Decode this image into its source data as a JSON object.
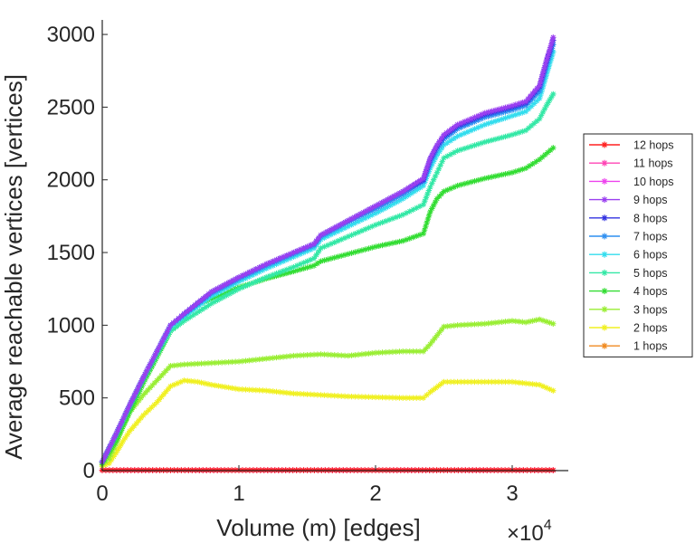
{
  "chart_data": {
    "type": "line",
    "title": "",
    "xlabel": "Volume (m) [edges]",
    "ylabel": "Average reachable vertices [vertices]",
    "x_multiplier_label": "×10",
    "x_multiplier_exponent": "4",
    "xlim": [
      0,
      34000
    ],
    "ylim": [
      0,
      3100
    ],
    "xticks": [
      {
        "value": 0,
        "label": "0"
      },
      {
        "value": 10000,
        "label": "1"
      },
      {
        "value": 20000,
        "label": "2"
      },
      {
        "value": 30000,
        "label": "3"
      }
    ],
    "yticks": [
      {
        "value": 0,
        "label": "0"
      },
      {
        "value": 500,
        "label": "500"
      },
      {
        "value": 1000,
        "label": "1000"
      },
      {
        "value": 1500,
        "label": "1500"
      },
      {
        "value": 2000,
        "label": "2000"
      },
      {
        "value": 2500,
        "label": "2500"
      },
      {
        "value": 3000,
        "label": "3000"
      }
    ],
    "grid": false,
    "legend_position": "right",
    "marker": "asterisk",
    "series": [
      {
        "name": "12 hops",
        "color": "#ff2020",
        "x": [
          0,
          5000,
          10000,
          15000,
          20000,
          25000,
          30000,
          33000
        ],
        "values": [
          3,
          3,
          3,
          3,
          3,
          3,
          3,
          3
        ]
      },
      {
        "name": "11 hops",
        "color": "#ff44b4",
        "x": [
          0,
          5000,
          10000,
          15000,
          20000,
          25000,
          30000,
          33000
        ],
        "values": [
          3,
          3,
          3,
          3,
          3,
          3,
          3,
          3
        ]
      },
      {
        "name": "10 hops",
        "color": "#ee44ee",
        "x": [
          0,
          5000,
          10000,
          15000,
          20000,
          25000,
          30000,
          33000
        ],
        "values": [
          3,
          3,
          3,
          3,
          3,
          3,
          3,
          3
        ]
      },
      {
        "name": "9 hops",
        "color": "#9a3ff0",
        "x": [
          0,
          1000,
          2000,
          3000,
          4000,
          5000,
          6000,
          8000,
          10000,
          12000,
          14000,
          15500,
          16000,
          18000,
          20000,
          22000,
          23500,
          24000,
          24500,
          25000,
          26000,
          28000,
          30000,
          31000,
          32000,
          32500,
          33000
        ],
        "values": [
          60,
          250,
          450,
          640,
          820,
          1000,
          1080,
          1230,
          1330,
          1420,
          1500,
          1560,
          1620,
          1720,
          1820,
          1920,
          2010,
          2150,
          2240,
          2310,
          2380,
          2460,
          2510,
          2540,
          2650,
          2820,
          2980
        ]
      },
      {
        "name": "8 hops",
        "color": "#3232e0",
        "x": [
          0,
          1000,
          2000,
          3000,
          4000,
          5000,
          6000,
          8000,
          10000,
          12000,
          14000,
          15500,
          16000,
          18000,
          20000,
          22000,
          23500,
          24000,
          24500,
          25000,
          26000,
          28000,
          30000,
          31000,
          32000,
          32500,
          33000
        ],
        "values": [
          60,
          250,
          450,
          640,
          820,
          1000,
          1080,
          1230,
          1330,
          1420,
          1500,
          1560,
          1620,
          1720,
          1820,
          1920,
          2000,
          2140,
          2230,
          2300,
          2370,
          2450,
          2500,
          2530,
          2640,
          2810,
          2960
        ]
      },
      {
        "name": "7 hops",
        "color": "#2f8ff0",
        "x": [
          0,
          1000,
          2000,
          3000,
          4000,
          5000,
          6000,
          8000,
          10000,
          12000,
          14000,
          15500,
          16000,
          18000,
          20000,
          22000,
          23500,
          24000,
          24500,
          25000,
          26000,
          28000,
          30000,
          31000,
          32000,
          32500,
          33000
        ],
        "values": [
          60,
          250,
          450,
          640,
          820,
          1000,
          1075,
          1220,
          1320,
          1410,
          1490,
          1550,
          1610,
          1710,
          1800,
          1900,
          1990,
          2120,
          2210,
          2280,
          2350,
          2430,
          2480,
          2510,
          2610,
          2780,
          2930
        ]
      },
      {
        "name": "6 hops",
        "color": "#33ddee",
        "x": [
          0,
          1000,
          2000,
          3000,
          4000,
          5000,
          6000,
          8000,
          10000,
          12000,
          14000,
          15500,
          16000,
          18000,
          20000,
          22000,
          23500,
          24000,
          24500,
          25000,
          26000,
          28000,
          30000,
          31000,
          32000,
          32500,
          33000
        ],
        "values": [
          60,
          250,
          450,
          640,
          820,
          990,
          1060,
          1200,
          1300,
          1390,
          1470,
          1530,
          1590,
          1680,
          1770,
          1870,
          1960,
          2080,
          2170,
          2240,
          2300,
          2380,
          2440,
          2470,
          2560,
          2720,
          2880
        ]
      },
      {
        "name": "5 hops",
        "color": "#33e8a6",
        "x": [
          0,
          1000,
          2000,
          3000,
          4000,
          5000,
          6000,
          8000,
          10000,
          12000,
          14000,
          15500,
          16000,
          18000,
          20000,
          22000,
          23500,
          24000,
          24500,
          25000,
          26000,
          28000,
          30000,
          31000,
          32000,
          32500,
          33000
        ],
        "values": [
          60,
          240,
          440,
          630,
          800,
          960,
          1030,
          1150,
          1250,
          1330,
          1400,
          1460,
          1530,
          1610,
          1690,
          1760,
          1830,
          1950,
          2050,
          2150,
          2200,
          2260,
          2310,
          2340,
          2420,
          2510,
          2590
        ]
      },
      {
        "name": "4 hops",
        "color": "#33dd33",
        "x": [
          0,
          1000,
          2000,
          3000,
          4000,
          5000,
          6000,
          7000,
          8000,
          10000,
          12000,
          14000,
          15500,
          16000,
          18000,
          20000,
          22000,
          23500,
          24000,
          24500,
          25000,
          26000,
          28000,
          30000,
          31000,
          32000,
          33000
        ],
        "values": [
          50,
          200,
          400,
          600,
          780,
          960,
          1050,
          1150,
          1180,
          1260,
          1320,
          1370,
          1410,
          1440,
          1490,
          1540,
          1580,
          1630,
          1780,
          1870,
          1920,
          1960,
          2010,
          2050,
          2080,
          2140,
          2220
        ]
      },
      {
        "name": "3 hops",
        "color": "#99ee33",
        "x": [
          0,
          500,
          1000,
          1500,
          2000,
          3000,
          4000,
          5000,
          6000,
          8000,
          10000,
          12000,
          14000,
          16000,
          18000,
          20000,
          22000,
          23500,
          24000,
          25000,
          26000,
          28000,
          30000,
          31000,
          32000,
          33000
        ],
        "values": [
          40,
          80,
          180,
          300,
          400,
          520,
          620,
          720,
          730,
          740,
          750,
          770,
          790,
          800,
          790,
          810,
          820,
          820,
          870,
          990,
          1000,
          1010,
          1030,
          1020,
          1040,
          1010
        ]
      },
      {
        "name": "2 hops",
        "color": "#f0f020",
        "x": [
          0,
          500,
          1000,
          1500,
          2000,
          3000,
          4000,
          5000,
          6000,
          7000,
          8000,
          10000,
          12000,
          14000,
          16000,
          18000,
          20000,
          22000,
          23500,
          24000,
          25000,
          26000,
          28000,
          30000,
          31000,
          32000,
          33000
        ],
        "values": [
          30,
          50,
          120,
          200,
          270,
          380,
          470,
          580,
          620,
          610,
          590,
          560,
          550,
          530,
          520,
          510,
          505,
          500,
          500,
          540,
          610,
          610,
          610,
          610,
          600,
          590,
          550
        ]
      },
      {
        "name": "1 hops",
        "color": "#f08a20",
        "x": [
          0,
          5000,
          10000,
          15000,
          20000,
          25000,
          30000,
          33000
        ],
        "values": [
          3,
          3,
          3,
          3,
          3,
          3,
          3,
          3
        ]
      }
    ]
  }
}
